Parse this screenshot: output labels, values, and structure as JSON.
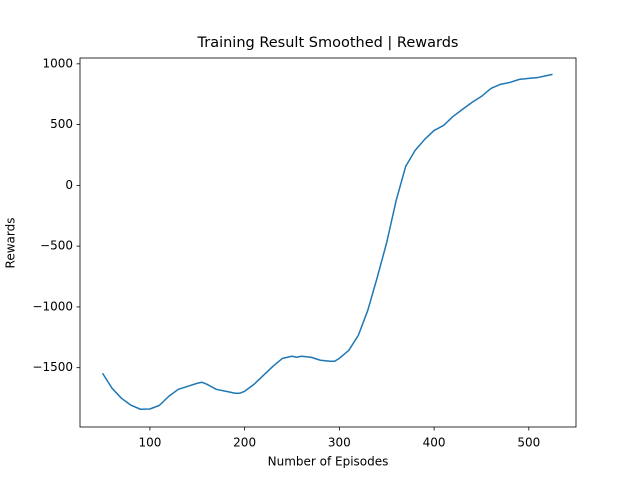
{
  "chart_data": {
    "type": "line",
    "title": "Training Result Smoothed | Rewards",
    "x_label": "Number of Episodes",
    "y_label": "Rewards",
    "x": [
      50,
      60,
      70,
      80,
      90,
      100,
      110,
      120,
      130,
      140,
      150,
      155,
      160,
      170,
      180,
      190,
      195,
      200,
      210,
      220,
      230,
      240,
      250,
      255,
      260,
      270,
      280,
      290,
      295,
      300,
      310,
      320,
      330,
      340,
      350,
      360,
      370,
      380,
      390,
      400,
      410,
      420,
      430,
      440,
      450,
      460,
      470,
      480,
      490,
      500,
      510,
      520,
      525
    ],
    "values": [
      -1546,
      -1669,
      -1752,
      -1809,
      -1842,
      -1840,
      -1810,
      -1735,
      -1678,
      -1653,
      -1628,
      -1620,
      -1636,
      -1678,
      -1694,
      -1710,
      -1710,
      -1694,
      -1636,
      -1562,
      -1488,
      -1423,
      -1406,
      -1414,
      -1406,
      -1414,
      -1439,
      -1447,
      -1447,
      -1423,
      -1357,
      -1234,
      -1028,
      -757,
      -469,
      -123,
      156,
      288,
      378,
      452,
      493,
      567,
      625,
      683,
      732,
      798,
      831,
      847,
      872,
      880,
      888,
      905,
      913
    ],
    "color": "#1f77b4",
    "xlim": [
      26.2,
      549.8
    ],
    "xticks": [
      100,
      200,
      300,
      400,
      500
    ],
    "ylim": [
      -1988,
      1048
    ],
    "yticks": [
      {
        "value": -1500,
        "label": "−1500"
      },
      {
        "value": -1000,
        "label": "−1000"
      },
      {
        "value": -500,
        "label": "−500"
      },
      0,
      500,
      1000
    ],
    "grid": false
  }
}
